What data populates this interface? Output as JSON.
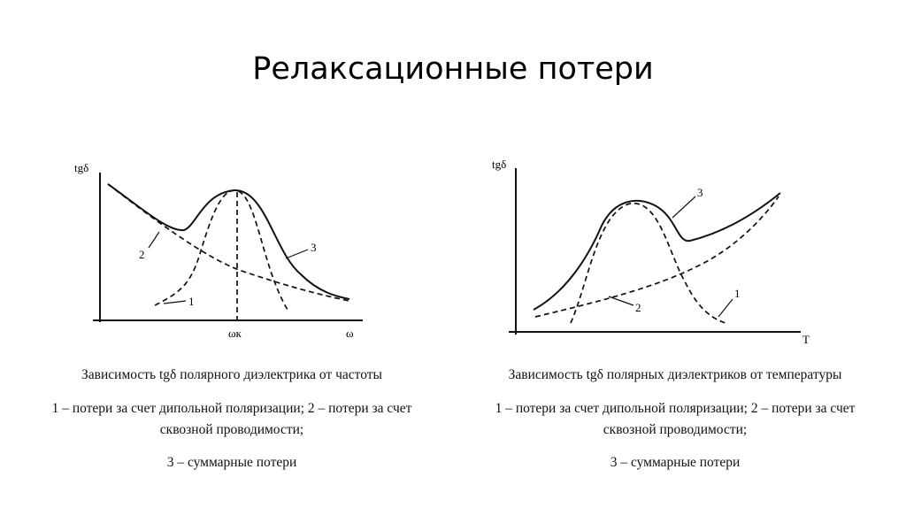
{
  "title": "Релаксационные потери",
  "diagrams": [
    {
      "y_axis_label": "tgδ",
      "x_axis_label": "ω",
      "x_marker_label": "ωк",
      "curve_labels": [
        "1",
        "2",
        "3"
      ],
      "caption": "Зависимость tgδ полярного диэлектрика от частоты",
      "legend": [
        "1 – потери за счет дипольной поляризации; 2 – потери за счет сквозной проводимости;",
        "3 – суммарные потери"
      ]
    },
    {
      "y_axis_label": "tgδ",
      "x_axis_label": "T",
      "curve_labels": [
        "1",
        "2",
        "3"
      ],
      "caption": "Зависимость tgδ полярных диэлектриков от температуры",
      "legend": [
        "1 – потери за счет дипольной поляризации; 2 – потери за счет сквозной проводимости;",
        "3 – суммарные потери"
      ]
    }
  ]
}
